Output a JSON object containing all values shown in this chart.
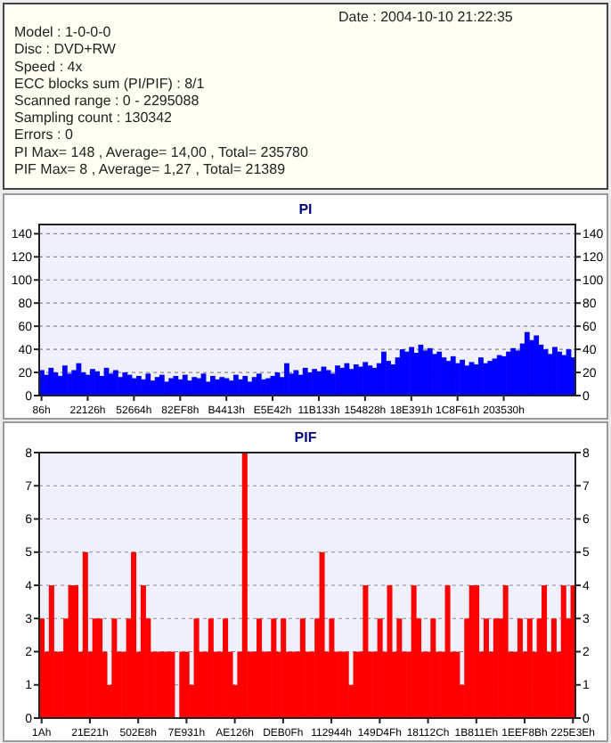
{
  "chart_data": [
    {
      "type": "other",
      "annotations": [
        "Date : 2004-10-10 21:22:35",
        "Model : 1-0-0-0",
        "Disc : DVD+RW",
        "Speed : 4x",
        "ECC blocks sum (PI/PIF) : 8/1",
        "Scanned range : 0 - 2295088",
        "Sampling count : 130342",
        "Errors : 0",
        "PI Max= 148 , Average= 14,00 , Total= 235780",
        "PIF Max= 8 , Average= 1,27 , Total= 21389"
      ]
    },
    {
      "type": "bar",
      "title": "PI",
      "color": "#0000ff",
      "grid": "y",
      "ylim": [
        0,
        148
      ],
      "yticks": [
        0,
        20,
        40,
        60,
        80,
        100,
        120,
        140
      ],
      "y2lim": [
        0,
        148
      ],
      "y2ticks": [
        0,
        20,
        40,
        60,
        80,
        100,
        120,
        140
      ],
      "categories": [
        "86h",
        null,
        null,
        null,
        null,
        null,
        null,
        null,
        null,
        null,
        "22126h",
        null,
        null,
        null,
        null,
        null,
        null,
        null,
        null,
        null,
        "52664h",
        null,
        null,
        null,
        null,
        null,
        null,
        null,
        null,
        null,
        "82EF8h",
        null,
        null,
        null,
        null,
        null,
        null,
        null,
        null,
        null,
        "B4413h",
        null,
        null,
        null,
        null,
        null,
        null,
        null,
        null,
        null,
        "E5E42h",
        null,
        null,
        null,
        null,
        null,
        null,
        null,
        null,
        null,
        "11B133h",
        null,
        null,
        null,
        null,
        null,
        null,
        null,
        null,
        null,
        "154828h",
        null,
        null,
        null,
        null,
        null,
        null,
        null,
        null,
        null,
        "18E391h",
        null,
        null,
        null,
        null,
        null,
        null,
        null,
        null,
        null,
        "1C8F61h",
        null,
        null,
        null,
        null,
        null,
        null,
        null,
        null,
        null,
        "203530h",
        null,
        null,
        null,
        null,
        null,
        null,
        null,
        null,
        null,
        null,
        null,
        null,
        null,
        null,
        null
      ],
      "values": [
        22,
        18,
        24,
        20,
        17,
        26,
        19,
        22,
        28,
        20,
        18,
        23,
        21,
        17,
        24,
        19,
        22,
        16,
        20,
        18,
        15,
        17,
        14,
        19,
        13,
        16,
        18,
        12,
        15,
        17,
        14,
        18,
        13,
        16,
        15,
        19,
        12,
        17,
        14,
        16,
        15,
        13,
        18,
        14,
        17,
        12,
        16,
        19,
        14,
        15,
        17,
        20,
        16,
        28,
        19,
        22,
        18,
        24,
        20,
        23,
        21,
        25,
        22,
        19,
        26,
        24,
        28,
        23,
        27,
        25,
        29,
        26,
        24,
        28,
        38,
        30,
        27,
        33,
        40,
        38,
        42,
        37,
        44,
        39,
        41,
        36,
        38,
        33,
        30,
        34,
        28,
        31,
        26,
        29,
        27,
        33,
        28,
        30,
        32,
        35,
        34,
        38,
        41,
        39,
        45,
        55,
        48,
        52,
        44,
        40,
        36,
        42,
        38,
        35,
        40,
        33
      ]
    },
    {
      "type": "bar",
      "title": "PIF",
      "color": "#ff0000",
      "grid": "y",
      "ylim": [
        0,
        8
      ],
      "yticks": [
        0,
        1,
        2,
        3,
        4,
        5,
        6,
        7,
        8
      ],
      "y2lim": [
        0,
        8
      ],
      "y2ticks": [
        0,
        1,
        2,
        3,
        4,
        5,
        6,
        7,
        8
      ],
      "categories": [
        "1Ah",
        null,
        null,
        null,
        null,
        null,
        null,
        null,
        null,
        null,
        "21E21h",
        null,
        null,
        null,
        null,
        null,
        null,
        null,
        null,
        null,
        "502E8h",
        null,
        null,
        null,
        null,
        null,
        null,
        null,
        null,
        null,
        "7E931h",
        null,
        null,
        null,
        null,
        null,
        null,
        null,
        null,
        null,
        "AE126h",
        null,
        null,
        null,
        null,
        null,
        null,
        null,
        null,
        null,
        "DEB0Fh",
        null,
        null,
        null,
        null,
        null,
        null,
        null,
        null,
        null,
        "112944h",
        null,
        null,
        null,
        null,
        null,
        null,
        null,
        null,
        null,
        "149D4Fh",
        null,
        null,
        null,
        null,
        null,
        null,
        null,
        null,
        null,
        "18112Ch",
        null,
        null,
        null,
        null,
        null,
        null,
        null,
        null,
        null,
        "1B811Eh",
        null,
        null,
        null,
        null,
        null,
        null,
        null,
        null,
        null,
        "1EEF8Bh",
        null,
        null,
        null,
        null,
        null,
        null,
        null,
        null,
        null,
        "225E3Eh"
      ],
      "values": [
        3,
        2,
        4,
        2,
        2,
        3,
        4,
        4,
        2,
        5,
        2,
        3,
        3,
        2,
        1,
        3,
        2,
        2,
        3,
        5,
        2,
        4,
        3,
        2,
        2,
        2,
        2,
        2,
        0,
        2,
        2,
        1,
        3,
        2,
        2,
        3,
        2,
        2,
        3,
        2,
        1,
        2,
        8,
        2,
        2,
        3,
        2,
        2,
        3,
        2,
        3,
        2,
        2,
        2,
        3,
        2,
        2,
        3,
        5,
        2,
        3,
        2,
        2,
        2,
        1,
        2,
        2,
        4,
        2,
        2,
        3,
        2,
        4,
        2,
        3,
        2,
        2,
        4,
        3,
        2,
        2,
        3,
        2,
        2,
        4,
        2,
        2,
        1,
        3,
        4,
        4,
        2,
        3,
        2,
        3,
        3,
        4,
        2,
        2,
        3,
        2,
        3,
        2,
        3,
        4,
        2,
        3,
        2,
        4,
        3,
        4
      ]
    }
  ]
}
